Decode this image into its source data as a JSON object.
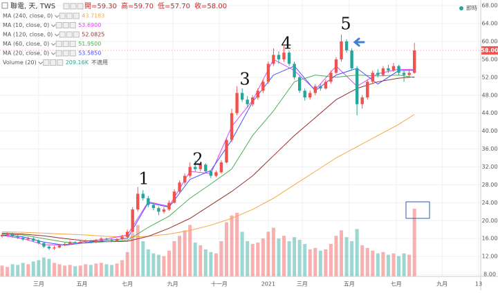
{
  "header": {
    "symbol": "聯電, 天, TWS",
    "ohlc": [
      "開=59.30",
      "高=59.70",
      "低=57.70",
      "收=58.00"
    ],
    "realtime": "即時"
  },
  "chart_data": {
    "type": "candlestick",
    "up_color": "#ef5350",
    "down_color": "#26a69a",
    "grid": true,
    "xlim": [
      -0.4,
      91.7
    ],
    "ylim": [
      7.55,
      69.25
    ],
    "xticks": [
      {
        "value": 7,
        "label": "三月"
      },
      {
        "value": 15.3,
        "label": "五月"
      },
      {
        "value": 24,
        "label": "七月"
      },
      {
        "value": 32.7,
        "label": "九月"
      },
      {
        "value": 41.6,
        "label": "十一月"
      },
      {
        "value": 51,
        "label": "2021"
      },
      {
        "value": 57.5,
        "label": "三月"
      },
      {
        "value": 66.5,
        "label": "五月"
      },
      {
        "value": 75.5,
        "label": "七月"
      },
      {
        "value": 84.3,
        "label": "九月"
      },
      {
        "value": 91.3,
        "label": "13"
      }
    ],
    "yticks": [
      {
        "value": 68,
        "label": "68.00"
      },
      {
        "value": 64,
        "label": "64.00"
      },
      {
        "value": 60,
        "label": "60.00"
      },
      {
        "value": 56,
        "label": "56.00"
      },
      {
        "value": 52,
        "label": "52.00"
      },
      {
        "value": 48,
        "label": "48.00"
      },
      {
        "value": 44,
        "label": "44.00"
      },
      {
        "value": 40,
        "label": "40.00"
      },
      {
        "value": 36,
        "label": "36.00"
      },
      {
        "value": 32,
        "label": "32.00"
      },
      {
        "value": 28,
        "label": "28.00"
      },
      {
        "value": 24,
        "label": "24.00"
      },
      {
        "value": 20,
        "label": "20.00"
      },
      {
        "value": 16,
        "label": "16.00"
      },
      {
        "value": 12,
        "label": "12.00"
      },
      {
        "value": 8,
        "label": "8.00"
      }
    ],
    "last_price": 58,
    "last_price_label": "58.00",
    "candles": [
      [
        16.5,
        17.2,
        16.2,
        16.8
      ],
      [
        16.8,
        17.4,
        16.5,
        17.0
      ],
      [
        17.0,
        17.3,
        16.2,
        16.5
      ],
      [
        16.5,
        16.9,
        15.9,
        16.2
      ],
      [
        16.2,
        16.5,
        15.5,
        15.8
      ],
      [
        15.8,
        16.4,
        15.5,
        16.0
      ],
      [
        16.0,
        16.3,
        15.2,
        15.5
      ],
      [
        15.5,
        15.8,
        14.7,
        15.0
      ],
      [
        15.0,
        15.3,
        13.9,
        14.2
      ],
      [
        14.2,
        14.6,
        13.4,
        13.8
      ],
      [
        13.8,
        14.4,
        13.5,
        14.0
      ],
      [
        14.0,
        14.8,
        13.8,
        14.5
      ],
      [
        14.5,
        15.1,
        14.3,
        14.8
      ],
      [
        14.8,
        15.5,
        14.6,
        15.2
      ],
      [
        15.2,
        15.4,
        14.7,
        15.0
      ],
      [
        15.0,
        15.6,
        14.8,
        15.3
      ],
      [
        15.3,
        15.8,
        15.1,
        15.5
      ],
      [
        15.5,
        15.7,
        14.9,
        15.2
      ],
      [
        15.2,
        15.9,
        15.0,
        15.6
      ],
      [
        15.6,
        16.3,
        15.4,
        16.0
      ],
      [
        16.0,
        16.2,
        15.5,
        15.8
      ],
      [
        15.8,
        16.0,
        15.2,
        15.5
      ],
      [
        15.5,
        16.1,
        15.3,
        15.9
      ],
      [
        15.9,
        16.8,
        15.7,
        16.4
      ],
      [
        16.4,
        18.0,
        16.2,
        17.5
      ],
      [
        17.5,
        23.0,
        17.3,
        22.5
      ],
      [
        22.5,
        27.5,
        22.0,
        26.0
      ],
      [
        26.0,
        26.8,
        24.5,
        25.0
      ],
      [
        25.0,
        25.5,
        23.0,
        23.5
      ],
      [
        23.5,
        24.0,
        22.3,
        22.8
      ],
      [
        22.8,
        23.2,
        21.2,
        22.0
      ],
      [
        22.0,
        23.0,
        21.6,
        22.5
      ],
      [
        22.5,
        24.5,
        22.2,
        24.0
      ],
      [
        24.0,
        27.0,
        23.8,
        26.5
      ],
      [
        26.5,
        29.0,
        26.0,
        28.5
      ],
      [
        28.5,
        30.5,
        28.0,
        30.0
      ],
      [
        30.0,
        33.0,
        29.6,
        32.0
      ],
      [
        32.0,
        33.4,
        31.0,
        31.5
      ],
      [
        31.5,
        33.2,
        31.0,
        32.5
      ],
      [
        32.5,
        32.8,
        30.6,
        31.0
      ],
      [
        31.0,
        31.3,
        29.5,
        30.0
      ],
      [
        30.0,
        31.2,
        29.7,
        30.8
      ],
      [
        30.8,
        33.5,
        30.5,
        33.0
      ],
      [
        33.0,
        38.5,
        32.8,
        38.0
      ],
      [
        38.0,
        45.0,
        37.5,
        44.0
      ],
      [
        44.0,
        50.0,
        43.5,
        48.5
      ],
      [
        48.5,
        49.5,
        46.5,
        47.0
      ],
      [
        47.0,
        47.8,
        45.2,
        46.0
      ],
      [
        46.0,
        48.0,
        45.5,
        47.5
      ],
      [
        47.5,
        49.5,
        47.0,
        49.0
      ],
      [
        49.0,
        51.5,
        48.5,
        51.0
      ],
      [
        51.0,
        55.5,
        50.5,
        55.0
      ],
      [
        55.0,
        58.5,
        54.5,
        57.0
      ],
      [
        57.0,
        57.8,
        55.0,
        56.0
      ],
      [
        56.0,
        59.0,
        55.5,
        57.5
      ],
      [
        57.5,
        58.0,
        54.5,
        55.0
      ],
      [
        55.0,
        55.5,
        51.5,
        52.0
      ],
      [
        52.0,
        52.5,
        48.5,
        49.0
      ],
      [
        49.0,
        49.5,
        46.8,
        47.5
      ],
      [
        47.5,
        49.0,
        47.0,
        48.5
      ],
      [
        48.5,
        50.5,
        48.0,
        50.0
      ],
      [
        50.0,
        50.6,
        49.0,
        49.5
      ],
      [
        49.5,
        51.5,
        49.2,
        51.0
      ],
      [
        51.0,
        53.5,
        50.6,
        53.0
      ],
      [
        53.0,
        56.5,
        52.8,
        56.0
      ],
      [
        56.0,
        61.5,
        55.5,
        60.0
      ],
      [
        60.0,
        60.5,
        57.5,
        58.0
      ],
      [
        58.0,
        58.5,
        53.5,
        54.0
      ],
      [
        54.0,
        54.5,
        43.5,
        46.0
      ],
      [
        46.0,
        48.0,
        45.0,
        47.5
      ],
      [
        47.5,
        51.5,
        47.0,
        51.0
      ],
      [
        51.0,
        53.5,
        50.5,
        53.0
      ],
      [
        53.0,
        53.8,
        52.0,
        52.5
      ],
      [
        52.5,
        54.5,
        52.2,
        54.0
      ],
      [
        54.0,
        54.8,
        53.0,
        53.5
      ],
      [
        53.5,
        55.2,
        53.2,
        54.5
      ],
      [
        54.5,
        54.8,
        52.5,
        53.0
      ],
      [
        53.0,
        53.5,
        51.0,
        52.5
      ],
      [
        52.5,
        53.8,
        52.2,
        53.0
      ],
      [
        53.0,
        59.7,
        52.8,
        58.0
      ]
    ],
    "volumes": [
      80,
      70,
      90,
      85,
      100,
      90,
      110,
      120,
      140,
      130,
      100,
      90,
      80,
      85,
      75,
      80,
      90,
      85,
      95,
      100,
      90,
      85,
      95,
      120,
      180,
      320,
      380,
      260,
      200,
      170,
      160,
      150,
      190,
      260,
      300,
      340,
      380,
      250,
      230,
      200,
      180,
      170,
      260,
      400,
      450,
      470,
      330,
      260,
      240,
      250,
      280,
      330,
      360,
      280,
      300,
      260,
      290,
      270,
      240,
      200,
      210,
      190,
      200,
      240,
      300,
      340,
      290,
      260,
      350,
      230,
      210,
      190,
      170,
      180,
      160,
      170,
      150,
      170,
      160,
      500
    ],
    "ma_x": [
      0,
      4,
      8,
      12,
      16,
      20,
      24,
      28,
      32,
      36,
      40,
      44,
      48,
      52,
      56,
      60,
      64,
      68,
      72,
      76,
      79
    ],
    "ma_series": [
      {
        "name": "MA (240, close, 0)",
        "color": "#f5a742",
        "value_label": "43.7183",
        "values": [
          17.5,
          17.4,
          17.2,
          17.0,
          16.8,
          16.5,
          16.3,
          16.5,
          17,
          17.8,
          19,
          20.5,
          22.5,
          25,
          28,
          31,
          34,
          36.5,
          39,
          41.5,
          43.7183
        ]
      },
      {
        "name": "MA (10, close, 0)",
        "color": "#e040fb",
        "value_label": "53.6900",
        "values": [
          16.7,
          16.0,
          14.6,
          14.6,
          15.4,
          15.9,
          16.8,
          24.2,
          23.2,
          31,
          30.5,
          41,
          46.8,
          56,
          53.5,
          49.2,
          54.5,
          50,
          52.8,
          53.8,
          53.69
        ]
      },
      {
        "name": "MA (120, close, 0)",
        "color": "#9c2b2b",
        "value_label": "52.0825",
        "values": [
          17.2,
          17.0,
          16.6,
          16.0,
          15.5,
          15.3,
          15.4,
          16.5,
          18.3,
          20.5,
          23.5,
          26.5,
          30,
          34.5,
          39,
          43,
          47,
          49.5,
          51,
          51.8,
          52.0825
        ]
      },
      {
        "name": "MA (60, close, 0)",
        "color": "#4caf50",
        "value_label": "51.9500",
        "values": [
          17.0,
          16.8,
          16.0,
          15.2,
          15.0,
          15.3,
          15.6,
          18.5,
          21,
          25,
          28.2,
          31.5,
          39,
          44.5,
          51,
          52.5,
          52,
          52.5,
          52.3,
          52.5,
          51.95
        ]
      },
      {
        "name": "MA (20, close, 0)",
        "color": "#3f51ff",
        "value_label": "53.5850",
        "values": [
          16.8,
          16.4,
          15.2,
          14.5,
          15.1,
          15.6,
          16.0,
          24.0,
          23.0,
          29.2,
          31.2,
          38,
          46.5,
          52.5,
          54.5,
          49,
          52.5,
          54,
          50.5,
          53.5,
          53.585
        ]
      }
    ],
    "volume_legend": {
      "name": "Volume (20)",
      "value_label": "209.16K",
      "note": "不適用"
    },
    "annotations": [
      "1",
      "2",
      "3",
      "4",
      "5"
    ]
  }
}
